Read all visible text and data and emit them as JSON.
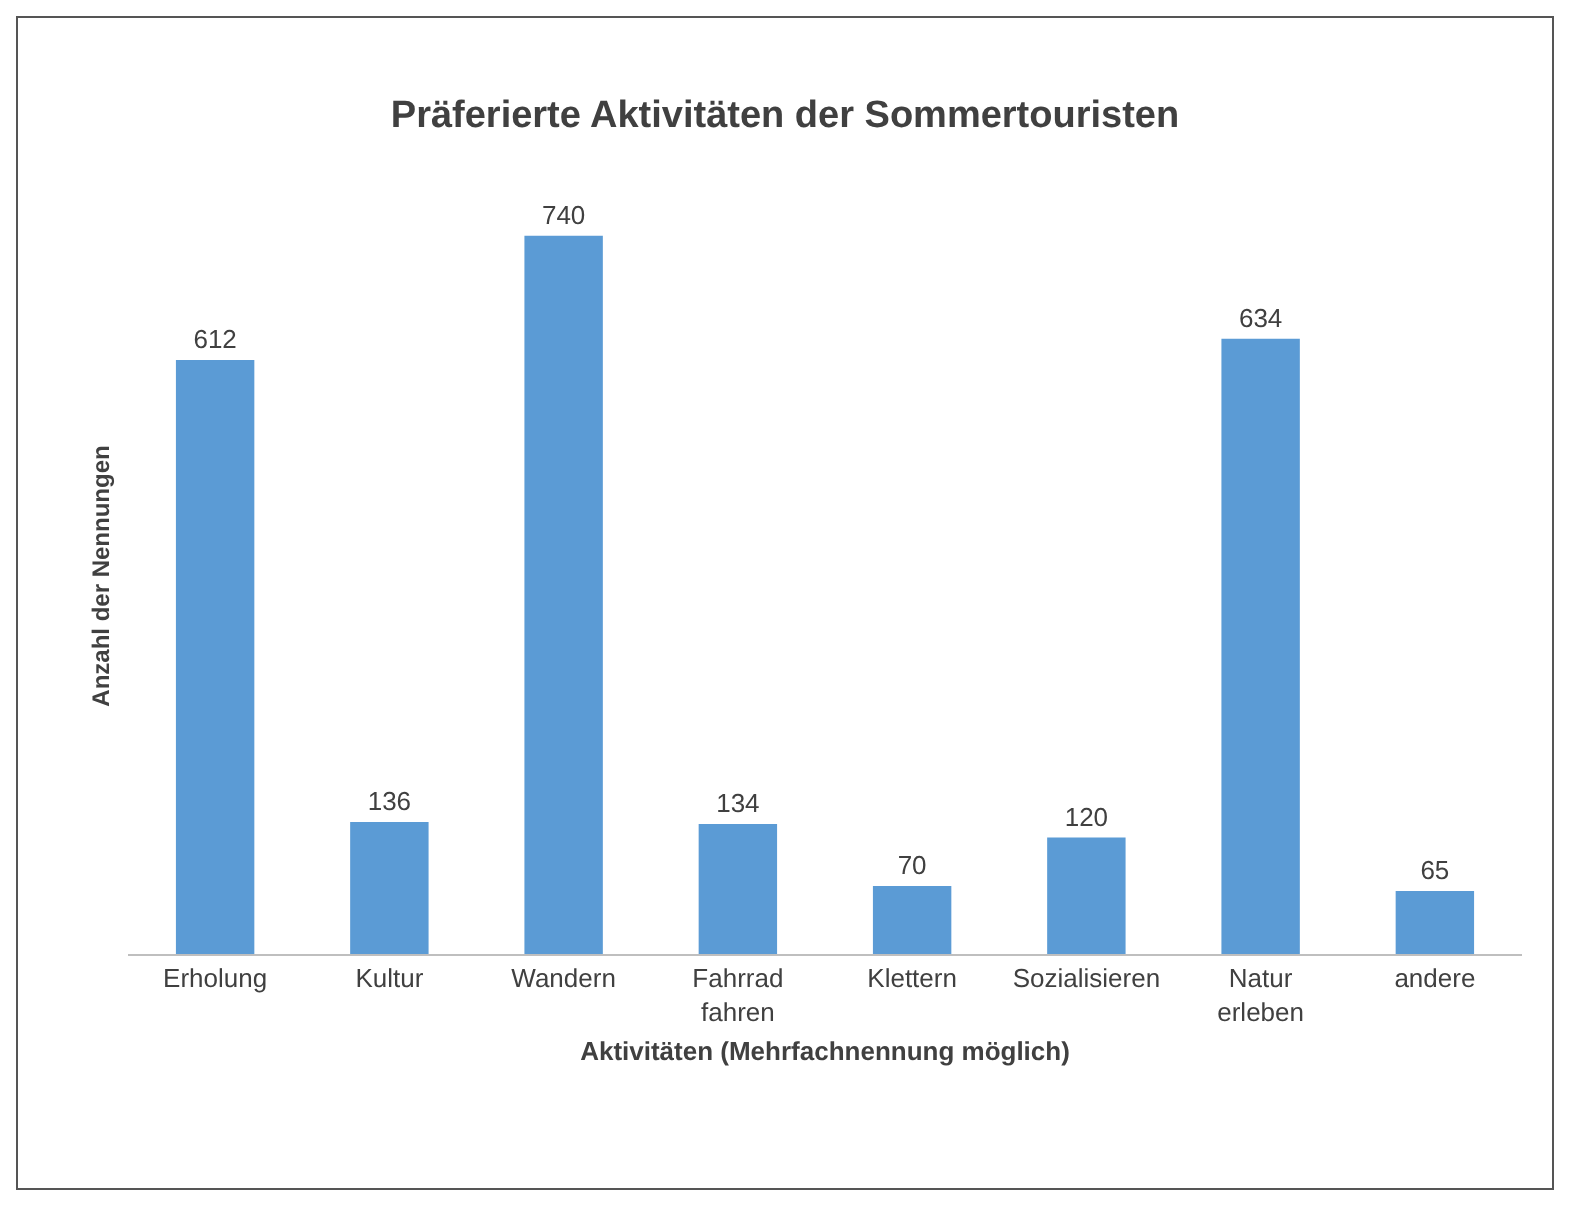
{
  "chart_data": {
    "type": "bar",
    "title": "Präferierte Aktivitäten der Sommertouristen",
    "xlabel": "Aktivitäten (Mehrfachnennung möglich)",
    "ylabel": "Anzahl der Nennungen",
    "categories": [
      "Erholung",
      "Kultur",
      "Wandern",
      "Fahrrad fahren",
      "Klettern",
      "Sozialisieren",
      "Natur erleben",
      "andere"
    ],
    "values": [
      612,
      136,
      740,
      134,
      70,
      120,
      634,
      65
    ],
    "color": "#5b9bd5",
    "data_labels": true,
    "grid": false,
    "tick_labels": "x"
  }
}
